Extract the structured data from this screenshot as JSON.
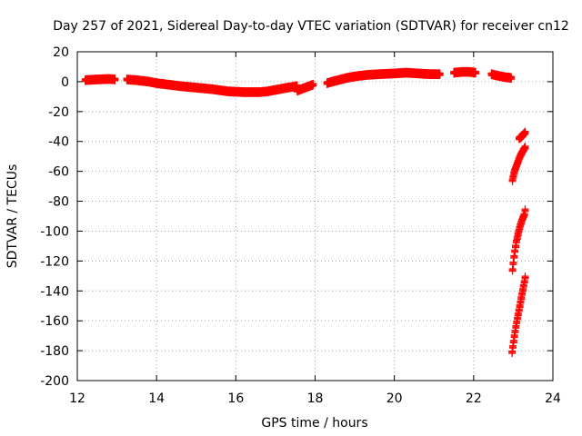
{
  "chart_data": {
    "type": "scatter",
    "title": "Day 257 of 2021, Sidereal Day-to-day VTEC variation (SDTVAR) for receiver cn12",
    "xlabel": "GPS time / hours",
    "ylabel": "SDTVAR / TECUs",
    "xlim": [
      12,
      24
    ],
    "ylim": [
      -200,
      20
    ],
    "xticks": [
      12,
      14,
      16,
      18,
      20,
      22,
      24
    ],
    "yticks": [
      -200,
      -180,
      -160,
      -140,
      -120,
      -100,
      -80,
      -60,
      -40,
      -20,
      0,
      20
    ],
    "grid": true,
    "marker": "plus",
    "color": "#ff0000",
    "series": [
      {
        "segments": [
          {
            "x": [
              12.2,
              12.5,
              12.8,
              12.95
            ],
            "y": [
              1,
              1.5,
              1.8,
              1.5
            ]
          },
          {
            "x": [
              13.25,
              13.5,
              13.8,
              14.0,
              14.3,
              14.6,
              15.0,
              15.4,
              15.8,
              16.2,
              16.6,
              16.8,
              17.0,
              17.3,
              17.55
            ],
            "y": [
              1.5,
              1.0,
              0,
              -1,
              -2,
              -3,
              -4,
              -5,
              -6.5,
              -7,
              -7,
              -6.5,
              -5.5,
              -4,
              -3
            ]
          },
          {
            "x": [
              17.55,
              17.65,
              17.75,
              17.85,
              17.95
            ],
            "y": [
              -6,
              -5,
              -4,
              -3,
              -2
            ]
          },
          {
            "x": [
              18.3,
              18.5,
              18.8,
              19.0,
              19.3,
              19.6,
              20.0,
              20.3,
              20.6,
              20.9,
              21.15
            ],
            "y": [
              -1,
              0.5,
              2.5,
              3.5,
              4.5,
              5,
              5.5,
              6,
              5.5,
              5,
              5
            ]
          },
          {
            "x": [
              21.5,
              21.7,
              21.9,
              22.05
            ],
            "y": [
              6,
              6.5,
              6.5,
              6
            ]
          },
          {
            "x": [
              22.45,
              22.6,
              22.8,
              22.95
            ],
            "y": [
              5,
              4,
              3,
              2.5
            ]
          },
          {
            "x": [
              22.98,
              23.03,
              23.1,
              23.17,
              23.25,
              23.3
            ],
            "y": [
              -66,
              -60,
              -55,
              -50,
              -46,
              -44
            ]
          },
          {
            "x": [
              23.15,
              23.2,
              23.25,
              23.3
            ],
            "y": [
              -38,
              -37,
              -35.5,
              -34
            ]
          },
          {
            "x": [
              22.98,
              23.03,
              23.08,
              23.13,
              23.18,
              23.23,
              23.28,
              23.3
            ],
            "y": [
              -126,
              -115,
              -107,
              -101,
              -96,
              -92,
              -89,
              -86
            ]
          },
          {
            "x": [
              22.97,
              23.03,
              23.08,
              23.13,
              23.18,
              23.23,
              23.28,
              23.3
            ],
            "y": [
              -181,
              -170,
              -162,
              -155,
              -148,
              -141,
              -134,
              -131
            ]
          }
        ]
      }
    ]
  }
}
